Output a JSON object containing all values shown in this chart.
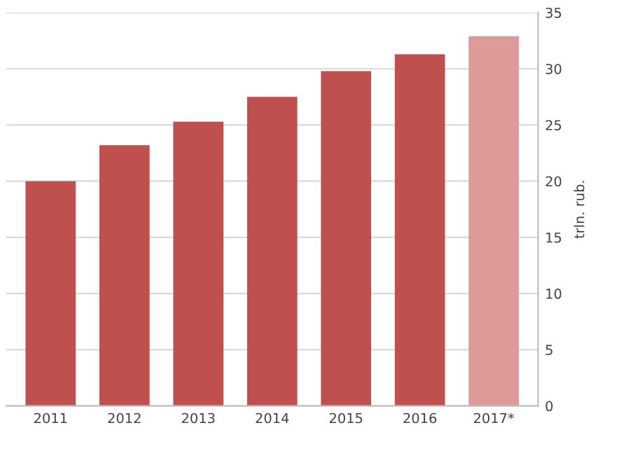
{
  "chart_data": {
    "type": "bar",
    "categories": [
      "2011",
      "2012",
      "2013",
      "2014",
      "2015",
      "2016",
      "2017*"
    ],
    "values": [
      20.0,
      23.2,
      25.3,
      27.5,
      29.8,
      31.3,
      32.9
    ],
    "colors": [
      "#c0504d",
      "#c0504d",
      "#c0504d",
      "#c0504d",
      "#c0504d",
      "#c0504d",
      "#dc9a98"
    ],
    "ylabel": "trln. rub.",
    "ylim": [
      0,
      35
    ],
    "yticks": [
      0,
      5,
      10,
      15,
      20,
      25,
      30,
      35
    ],
    "grid": "y"
  }
}
